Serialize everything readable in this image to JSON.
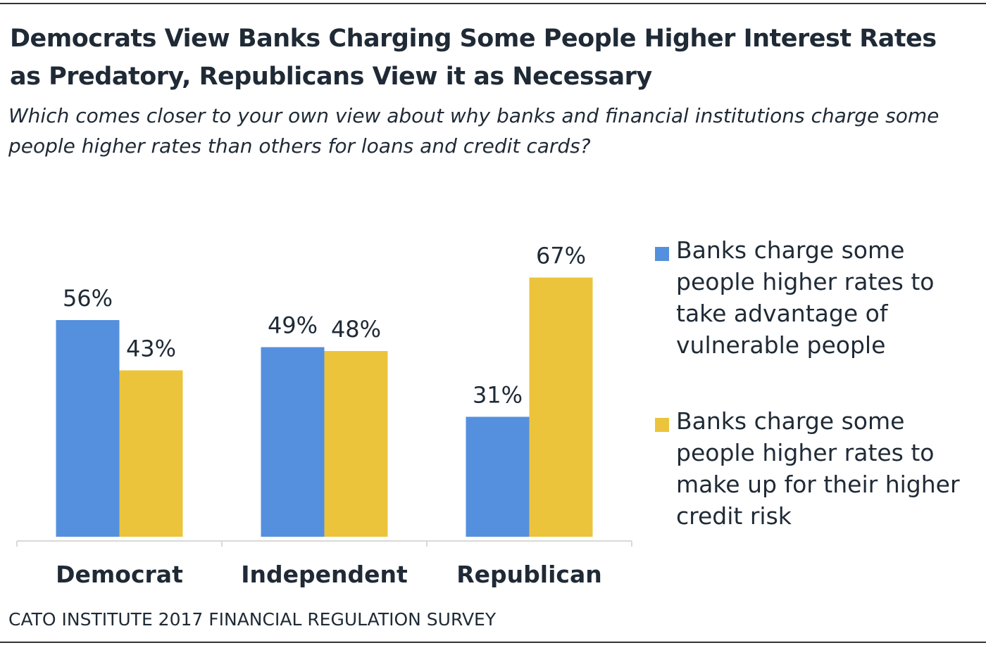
{
  "title": "Democrats View Banks Charging Some People Higher Interest Rates as Predatory, Republicans View it as Necessary",
  "subtitle": "Which comes closer to your own view about why banks and financial institutions charge some people higher rates than others for loans and credit cards?",
  "source": "CATO INSTITUTE 2017 FINANCIAL REGULATION SURVEY",
  "colors": {
    "series1": "#5590de",
    "series2": "#ecc43c",
    "text": "#1f2a36",
    "axis": "#d9d9d9"
  },
  "chart_data": {
    "type": "bar",
    "categories": [
      "Democrat",
      "Independent",
      "Republican"
    ],
    "series": [
      {
        "name": "Banks charge some people higher rates to take advantage of vulnerable people",
        "values": [
          56,
          49,
          31
        ]
      },
      {
        "name": "Banks charge some people higher rates to make up for their higher credit risk",
        "values": [
          43,
          48,
          67
        ]
      }
    ],
    "data_labels": [
      [
        "56%",
        "49%",
        "31%"
      ],
      [
        "43%",
        "48%",
        "67%"
      ]
    ],
    "ylim": [
      0,
      70
    ],
    "grid": false,
    "legend_position": "right"
  }
}
